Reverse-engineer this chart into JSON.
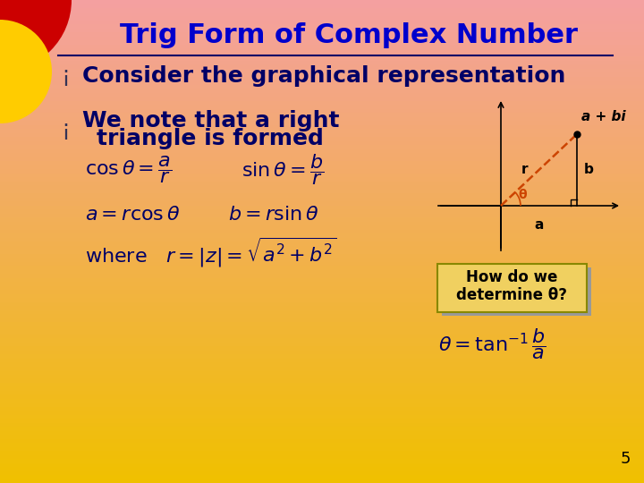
{
  "title": "Trig Form of Complex Number",
  "title_color": "#0000cc",
  "title_fontsize": 22,
  "bg_top_color": "#f4a0a0",
  "bg_bottom_color": "#f0c000",
  "slide_number": "5",
  "bullet1": "Consider the graphical representation",
  "bullet2_line1": "We note that a right",
  "bullet2_line2": "triangle is formed",
  "bullet_color": "#000066",
  "bullet_fontsize": 18,
  "formula_color": "#000066",
  "formula_fontsize": 16,
  "box_text": "How do we\ndetermine θ?",
  "box_facecolor": "#f0d060",
  "box_edgecolor": "#888800",
  "box_shadow_color": "#888888",
  "red_circle_color": "#cc0000",
  "yellow_circle_color": "#ffcc00"
}
